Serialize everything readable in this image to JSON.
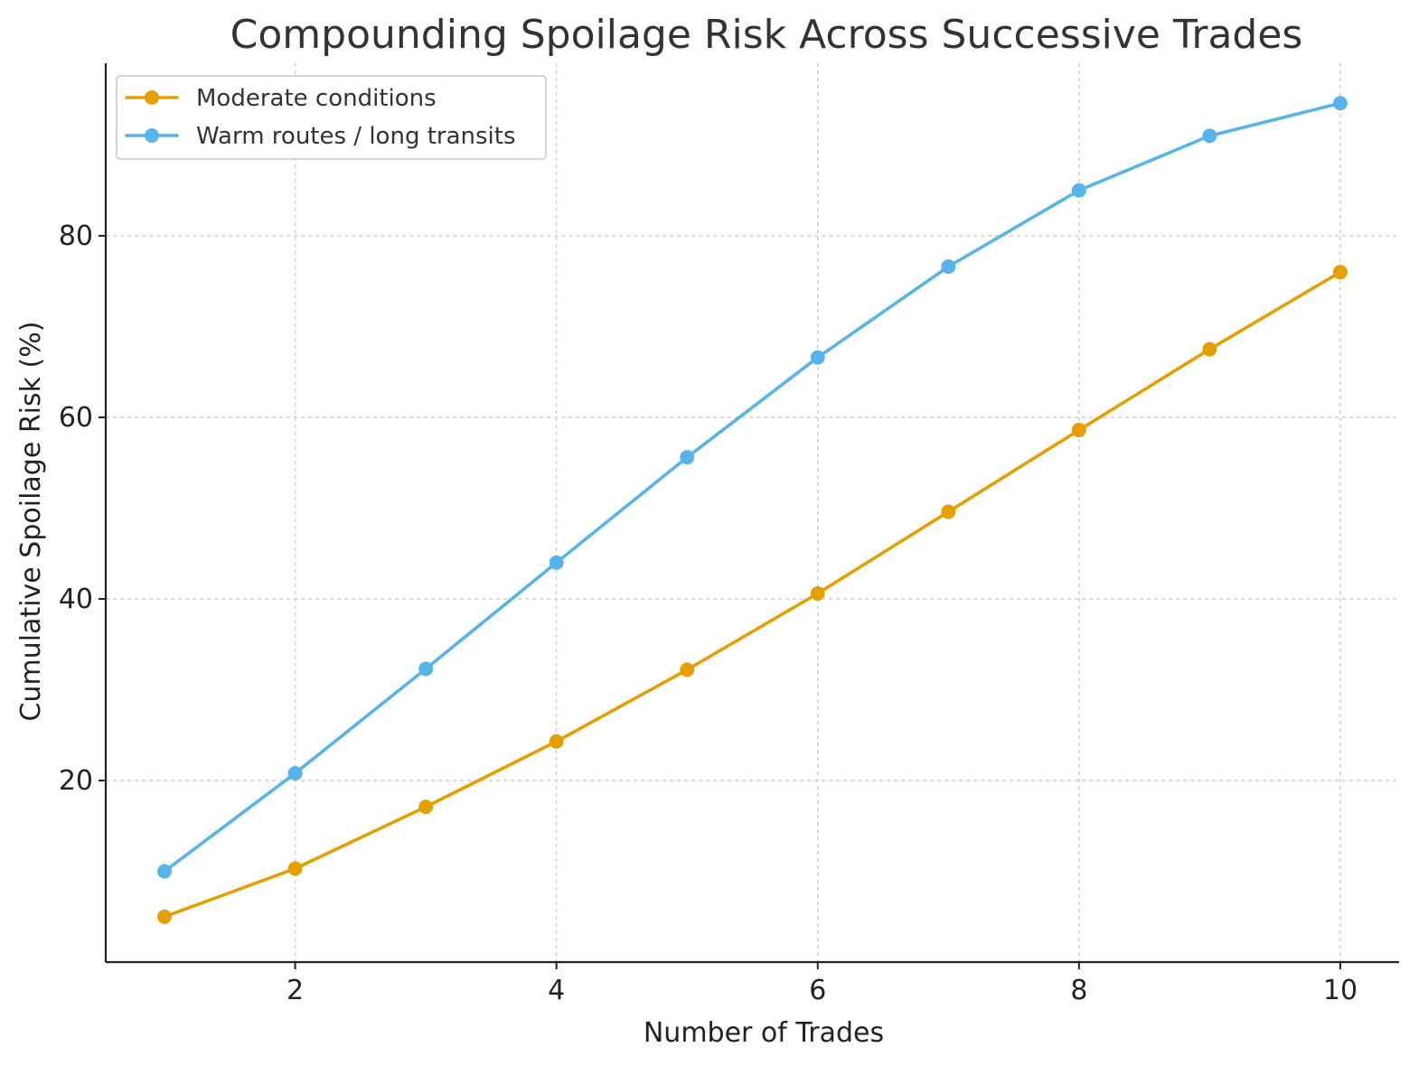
{
  "chart_data": {
    "type": "line",
    "title": "Compounding Spoilage Risk Across Successive Trades",
    "xlabel": "Number of Trades",
    "ylabel": "Cumulative Spoilage Risk (%)",
    "x": [
      1,
      2,
      3,
      4,
      5,
      6,
      7,
      8,
      9,
      10
    ],
    "xlim": [
      0.55,
      10.45
    ],
    "ylim": [
      0.0,
      99.0
    ],
    "xticks": [
      2,
      4,
      6,
      8,
      10
    ],
    "yticks": [
      20,
      40,
      60,
      80
    ],
    "grid": true,
    "legend_position": "top-left",
    "series": [
      {
        "name": "Moderate conditions",
        "color": "#E69F00",
        "values": [
          5.0,
          10.3,
          17.1,
          24.3,
          32.2,
          40.6,
          49.6,
          58.6,
          67.5,
          76.0
        ]
      },
      {
        "name": "Warm routes / long transits",
        "color": "#56B4E9",
        "values": [
          10.0,
          20.8,
          32.3,
          44.0,
          55.6,
          66.6,
          76.6,
          85.0,
          91.0,
          94.6
        ]
      }
    ]
  }
}
